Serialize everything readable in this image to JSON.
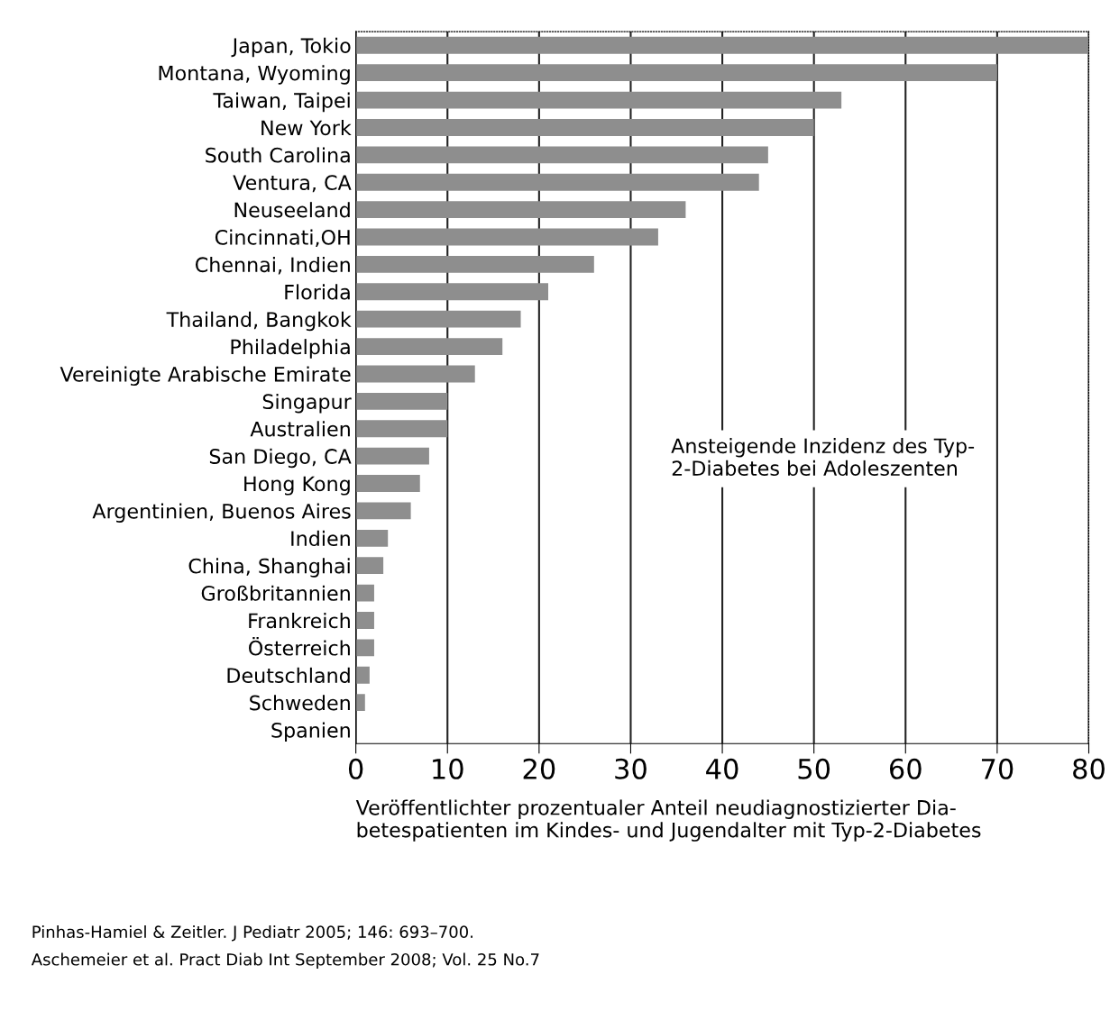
{
  "chart_data": {
    "type": "bar",
    "orientation": "horizontal",
    "categories": [
      "Japan, Tokio",
      "Montana, Wyoming",
      "Taiwan, Taipei",
      "New York",
      "South Carolina",
      "Ventura, CA",
      "Neuseeland",
      "Cincinnati,OH",
      "Chennai, Indien",
      "Florida",
      "Thailand, Bangkok",
      "Philadelphia",
      "Vereinigte Arabische Emirate",
      "Singapur",
      "Australien",
      "San Diego, CA",
      "Hong Kong",
      "Argentinien, Buenos Aires",
      "Indien",
      "China, Shanghai",
      "Großbritannien",
      "Frankreich",
      "Österreich",
      "Deutschland",
      "Schweden",
      "Spanien"
    ],
    "values": [
      80,
      70,
      53,
      50,
      45,
      44,
      36,
      33,
      26,
      21,
      18,
      16,
      13,
      10,
      10,
      8,
      7,
      6,
      3.5,
      3,
      2,
      2,
      2,
      1.5,
      1,
      0
    ],
    "color": "#8e8e8e",
    "xlim": [
      0,
      80
    ],
    "xticks": [
      0,
      10,
      20,
      30,
      40,
      50,
      60,
      70,
      80
    ],
    "xlabel": "Veröffentlichter prozentualer Anteil neudiagnostizierter Dia-\nbetespatienten im Kindes- und Jugendalter mit Typ-2-Diabetes",
    "grid": "x",
    "annotations": [
      "Ansteigende Inzidenz des Typ-\n2-Diabetes bei Adoleszenten",
      "Pinhas-Hamiel & Zeitler. J Pediatr 2005; 146: 693–700.",
      "Aschemeier et al. Pract Diab Int September 2008; Vol. 25 No.7"
    ]
  }
}
